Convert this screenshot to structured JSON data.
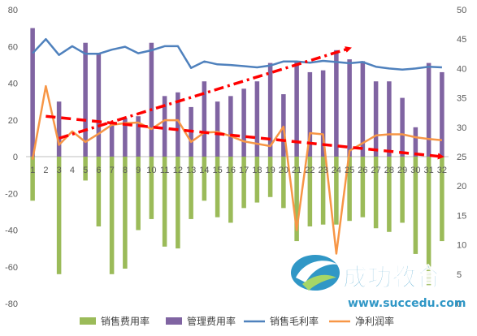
{
  "chart_data": {
    "type": "bar",
    "categories": [
      "1",
      "2",
      "3",
      "4",
      "5",
      "6",
      "7",
      "8",
      "9",
      "10",
      "11",
      "12",
      "13",
      "14",
      "15",
      "16",
      "17",
      "18",
      "19",
      "20",
      "21",
      "22",
      "23",
      "24",
      "25",
      "26",
      "27",
      "28",
      "29",
      "30",
      "31",
      "32"
    ],
    "left_axis": {
      "ylim": [
        -80,
        80
      ],
      "ticks": [
        -80,
        -60,
        -40,
        -20,
        0,
        20,
        40,
        60,
        80
      ]
    },
    "right_axis": {
      "ylim": [
        0,
        50
      ],
      "ticks": [
        0,
        5,
        10,
        15,
        20,
        25,
        30,
        35,
        40,
        45,
        50
      ]
    },
    "series": [
      {
        "name": "销售费用率",
        "type": "bar",
        "axis": "left",
        "color": "#9bbb59",
        "values": [
          -24,
          null,
          -64,
          null,
          -13,
          -38,
          -64,
          -61,
          -40,
          -34,
          -49,
          -50,
          -34,
          -24,
          -33,
          -36,
          -28,
          -25,
          -22,
          -28,
          -46,
          -38,
          -37,
          -37,
          -35,
          -33,
          -39,
          -41,
          -36,
          -53,
          -70,
          -46
        ]
      },
      {
        "name": "管理费用率",
        "type": "bar",
        "axis": "left",
        "color": "#8064a2",
        "values": [
          70,
          null,
          30,
          null,
          62,
          56,
          18,
          21,
          22,
          62,
          33,
          35,
          27,
          41,
          30,
          33,
          37,
          41,
          51,
          34,
          52,
          46,
          47,
          58,
          53,
          52,
          41,
          41,
          32,
          16,
          51,
          46
        ]
      },
      {
        "name": "销售毛利率",
        "type": "line",
        "axis": "right",
        "color": "#4f81bd",
        "values": [
          42.6,
          45,
          42.3,
          43.8,
          42.5,
          42.5,
          43.2,
          43.7,
          42.6,
          43.1,
          43.8,
          43.8,
          40.1,
          41.2,
          40.7,
          40.6,
          40.4,
          40.2,
          40.5,
          41.2,
          41.2,
          41.0,
          41.3,
          41.1,
          40.9,
          41.1,
          40.3,
          40.0,
          39.8,
          40.0,
          40.3,
          40.2
        ]
      },
      {
        "name": "净利润率",
        "type": "line",
        "axis": "right",
        "color": "#f79646",
        "values": [
          24.5,
          37.0,
          27.0,
          29.3,
          27.5,
          28.9,
          30.4,
          30.7,
          30.8,
          29.7,
          31.2,
          31.2,
          27.5,
          29.1,
          29.2,
          28.5,
          27.6,
          27.2,
          26.8,
          30.1,
          12.5,
          29.0,
          28.8,
          8.5,
          26.0,
          27.3,
          28.6,
          28.8,
          28.8,
          28.3,
          28.0,
          27.8
        ]
      }
    ],
    "annotations": [
      {
        "style": "dashed-arrow",
        "color": "#ff0000",
        "from": {
          "x": "2",
          "y": 22
        },
        "to": {
          "x": "32",
          "y": 0
        }
      },
      {
        "style": "dashdot-arrow",
        "color": "#ff0000",
        "from": {
          "x": "3",
          "y": 10
        },
        "to": {
          "x": "25",
          "y": 59
        }
      }
    ],
    "legend": {
      "position": "bottom"
    },
    "grid": false
  },
  "watermark": {
    "brand": "成功教育",
    "url": "www.succedu.com"
  }
}
